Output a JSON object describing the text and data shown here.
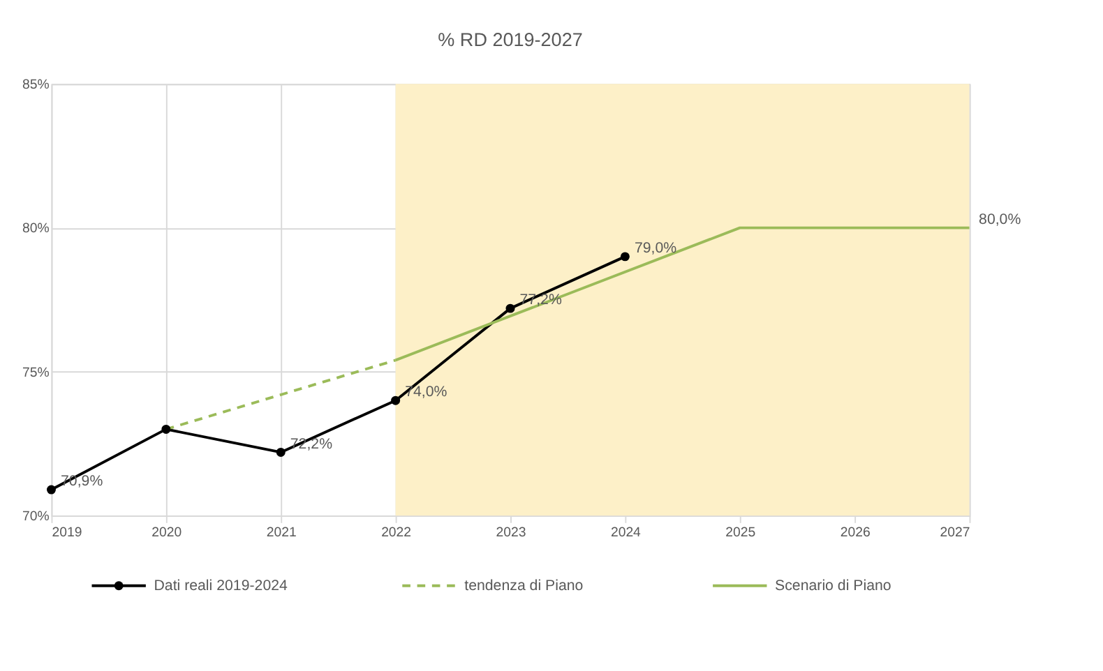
{
  "chart_data": {
    "type": "line",
    "title": "% RD 2019-2027",
    "xlim": [
      2019,
      2027
    ],
    "xticks": [
      2019,
      2020,
      2021,
      2022,
      2023,
      2024,
      2025,
      2026,
      2027
    ],
    "ylim": [
      70,
      85
    ],
    "yticks": [
      {
        "value": 70,
        "label": "70%"
      },
      {
        "value": 75,
        "label": "75%"
      },
      {
        "value": 80,
        "label": "80%"
      },
      {
        "value": 85,
        "label": "85%"
      }
    ],
    "grid": true,
    "legend": "bottom",
    "bands": [
      {
        "axis": "x",
        "from": 2022,
        "to": 2027,
        "color": "#fdf0c8"
      }
    ],
    "series": [
      {
        "name": "Dati reali 2019-2024",
        "color": "#000000",
        "marker": "circle",
        "line_style": "solid",
        "x": [
          2019,
          2020,
          2021,
          2022,
          2023,
          2024
        ],
        "values": [
          70.9,
          73.0,
          72.2,
          74.0,
          77.2,
          79.0
        ],
        "value_labels": [
          "70,9%",
          null,
          "72,2%",
          "74,0%",
          "77,2%",
          "79,0%"
        ]
      },
      {
        "name": "tendenza di Piano",
        "color": "#9bbb59",
        "marker": "none",
        "line_style": "dashed",
        "x": [
          2020,
          2022
        ],
        "values": [
          73.0,
          75.4
        ]
      },
      {
        "name": "Scenario di Piano",
        "color": "#9bbb59",
        "marker": "none",
        "line_style": "solid",
        "x": [
          2022,
          2025,
          2027
        ],
        "values": [
          75.4,
          80.0,
          80.0
        ],
        "value_labels": [
          null,
          null,
          "80,0%"
        ]
      }
    ]
  }
}
